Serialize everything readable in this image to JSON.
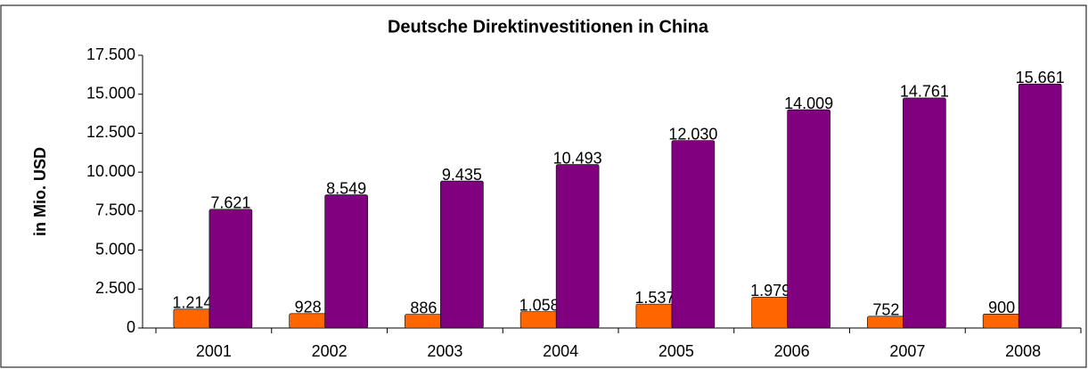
{
  "chart_data": {
    "type": "bar",
    "title": "Deutsche Direktinvestitionen in China",
    "y_label": "in Mio. USD",
    "categories": [
      "2001",
      "2002",
      "2003",
      "2004",
      "2005",
      "2006",
      "2007",
      "2008"
    ],
    "series": [
      {
        "color": "#ff6600",
        "values": [
          1214,
          928,
          886,
          1058,
          1537,
          1979,
          752,
          900
        ],
        "value_labels": [
          "1.214",
          "928",
          "886",
          "1.058",
          "1.537",
          "1.979",
          "752",
          "900"
        ]
      },
      {
        "color": "#800080",
        "values": [
          7621,
          8549,
          9435,
          10493,
          12030,
          14009,
          14761,
          15661
        ],
        "value_labels": [
          "7.621",
          "8.549",
          "9.435",
          "10.493",
          "12.030",
          "14.009",
          "14.761",
          "15.661"
        ]
      }
    ],
    "ylim": [
      0,
      17500
    ],
    "yticks": [
      0,
      {
        "value": 2500,
        "label": "2.500"
      },
      {
        "value": 5000,
        "label": "5.000"
      },
      {
        "value": 7500,
        "label": "7.500"
      },
      {
        "value": 10000,
        "label": "10.000"
      },
      {
        "value": 12500,
        "label": "12.500"
      },
      {
        "value": 15000,
        "label": "15.000"
      },
      {
        "value": 17500,
        "label": "17.500"
      }
    ],
    "grid": false
  }
}
